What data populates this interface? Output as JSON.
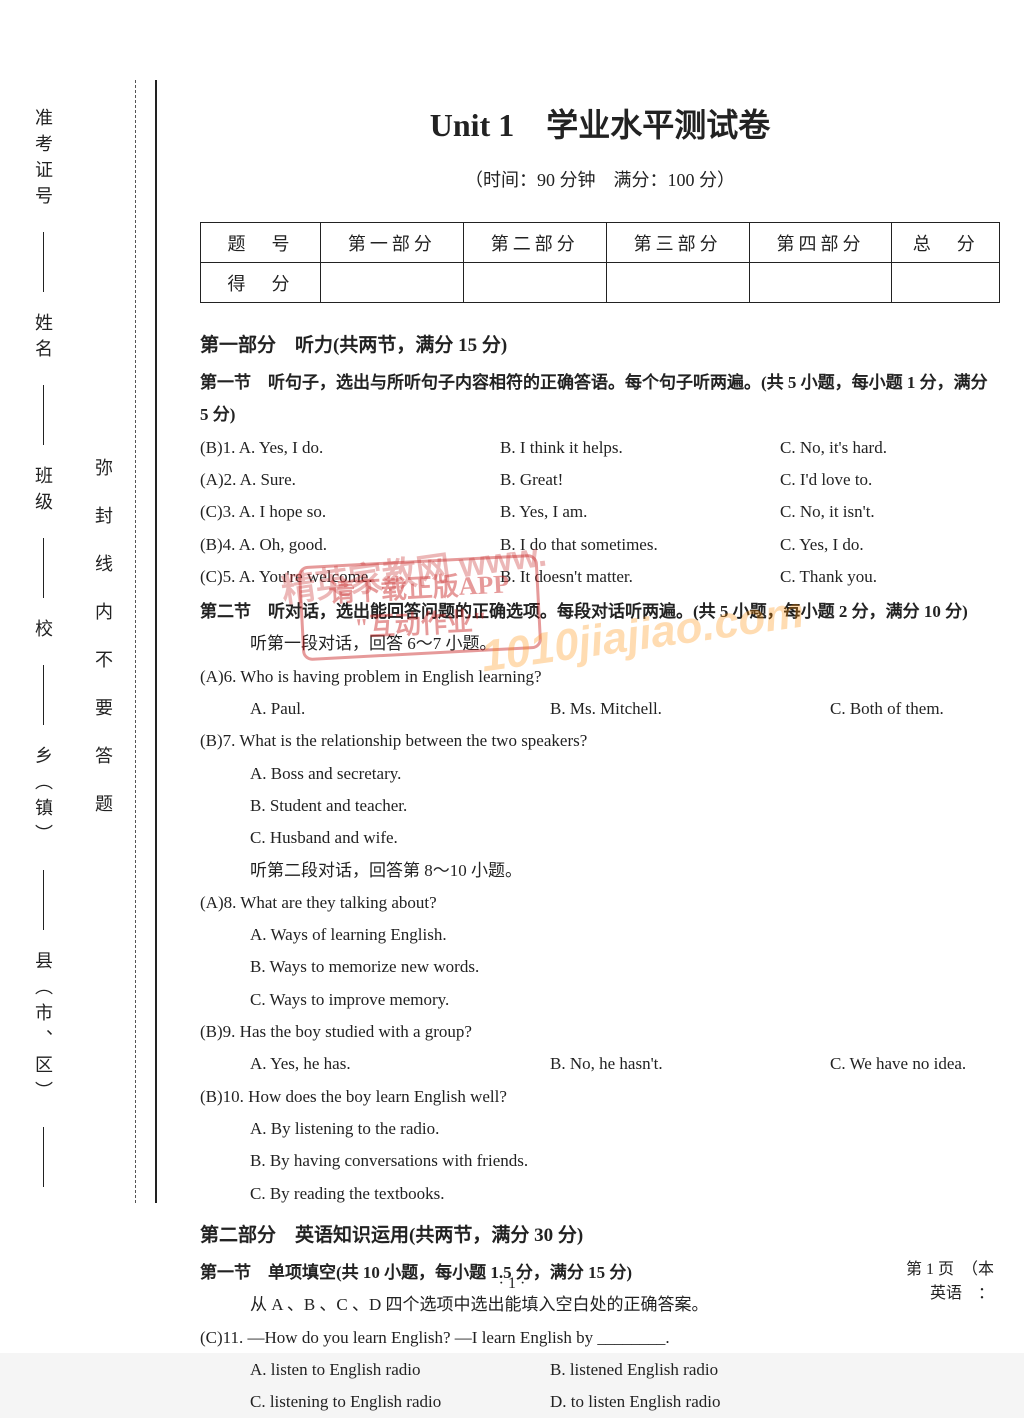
{
  "page": {
    "title": "Unit 1　学业水平测试卷",
    "subtitle": "（时间：90 分钟　满分：100 分）",
    "footer_page": "· 1 ·",
    "footer_right1": "第 1 页　（本",
    "footer_right2": "英语　："
  },
  "sidebar": {
    "outer": {
      "county": "县（市、区）",
      "town": "乡（镇）",
      "school": "校",
      "class": "班级",
      "name": "姓名",
      "exam_no": "准考证号"
    },
    "inner": "弥封线内不要答题"
  },
  "table": {
    "row1_label": "题　号",
    "cols": [
      "第一部分",
      "第二部分",
      "第三部分",
      "第四部分",
      "总　分"
    ],
    "row2_label": "得　分"
  },
  "part1": {
    "heading": "第一部分　听力(共两节，满分 15 分)",
    "sec1_title": "第一节　听句子，选出与所听句子内容相符的正确答语。每个句子听两遍。(共 5 小题，每小题 1 分，满分 5 分)",
    "q1": {
      "n": "(B)1.",
      "a": "A. Yes, I do.",
      "b": "B. I think it helps.",
      "c": "C. No, it's hard."
    },
    "q2": {
      "n": "(A)2.",
      "a": "A. Sure.",
      "b": "B. Great!",
      "c": "C. I'd love to."
    },
    "q3": {
      "n": "(C)3.",
      "a": "A. I hope so.",
      "b": "B. Yes, I am.",
      "c": "C. No, it isn't."
    },
    "q4": {
      "n": "(B)4.",
      "a": "A. Oh, good.",
      "b": "B. I do that sometimes.",
      "c": "C. Yes, I do."
    },
    "q5": {
      "n": "(C)5.",
      "a": "A. You're welcome.",
      "b": "B. It doesn't matter.",
      "c": "C. Thank you."
    },
    "sec2_title": "第二节　听对话，选出能回答问题的正确选项。每段对话听两遍。(共 5 小题，每小题 2 分，满分 10 分)",
    "d1_intro": "听第一段对话，回答 6～7 小题。",
    "q6": {
      "q": "(A)6. Who is having problem in English learning?",
      "a": "A. Paul.",
      "b": "B. Ms. Mitchell.",
      "c": "C. Both of them."
    },
    "q7": {
      "q": "(B)7. What is the relationship between the two speakers?",
      "a": "A. Boss and secretary.",
      "b": "B. Student and teacher.",
      "c": "C. Husband and wife."
    },
    "d2_intro": "听第二段对话，回答第 8～10 小题。",
    "q8": {
      "q": "(A)8. What are they talking about?",
      "a": "A. Ways of learning English.",
      "b": "B. Ways to memorize new words.",
      "c": "C. Ways to improve memory."
    },
    "q9": {
      "q": "(B)9. Has the boy studied with a group?",
      "a": "A. Yes, he has.",
      "b": "B. No, he hasn't.",
      "c": "C. We have no idea."
    },
    "q10": {
      "q": "(B)10. How does the boy learn English well?",
      "a": "A. By listening to the radio.",
      "b": "B. By having conversations with friends.",
      "c": "C. By reading the textbooks."
    }
  },
  "part2": {
    "heading": "第二部分　英语知识运用(共两节，满分 30 分)",
    "sec1_title": "第一节　单项填空(共 10 小题，每小题 1.5 分，满分 15 分)",
    "instr": "从 A 、B 、C 、D 四个选项中选出能填入空白处的正确答案。",
    "q11": {
      "q": "(C)11. —How do you learn English? —I learn English by ________.",
      "a": "A. listen to English radio",
      "b": "B. listened English radio",
      "c": "C. listening to English radio",
      "d": "D. to listen English radio"
    }
  },
  "stamp": {
    "line1": "请下载正版APP",
    "line2": "\"互动作业\""
  },
  "watermark1": "精英家教网 www.",
  "watermark2": "1010jiajiao.com"
}
